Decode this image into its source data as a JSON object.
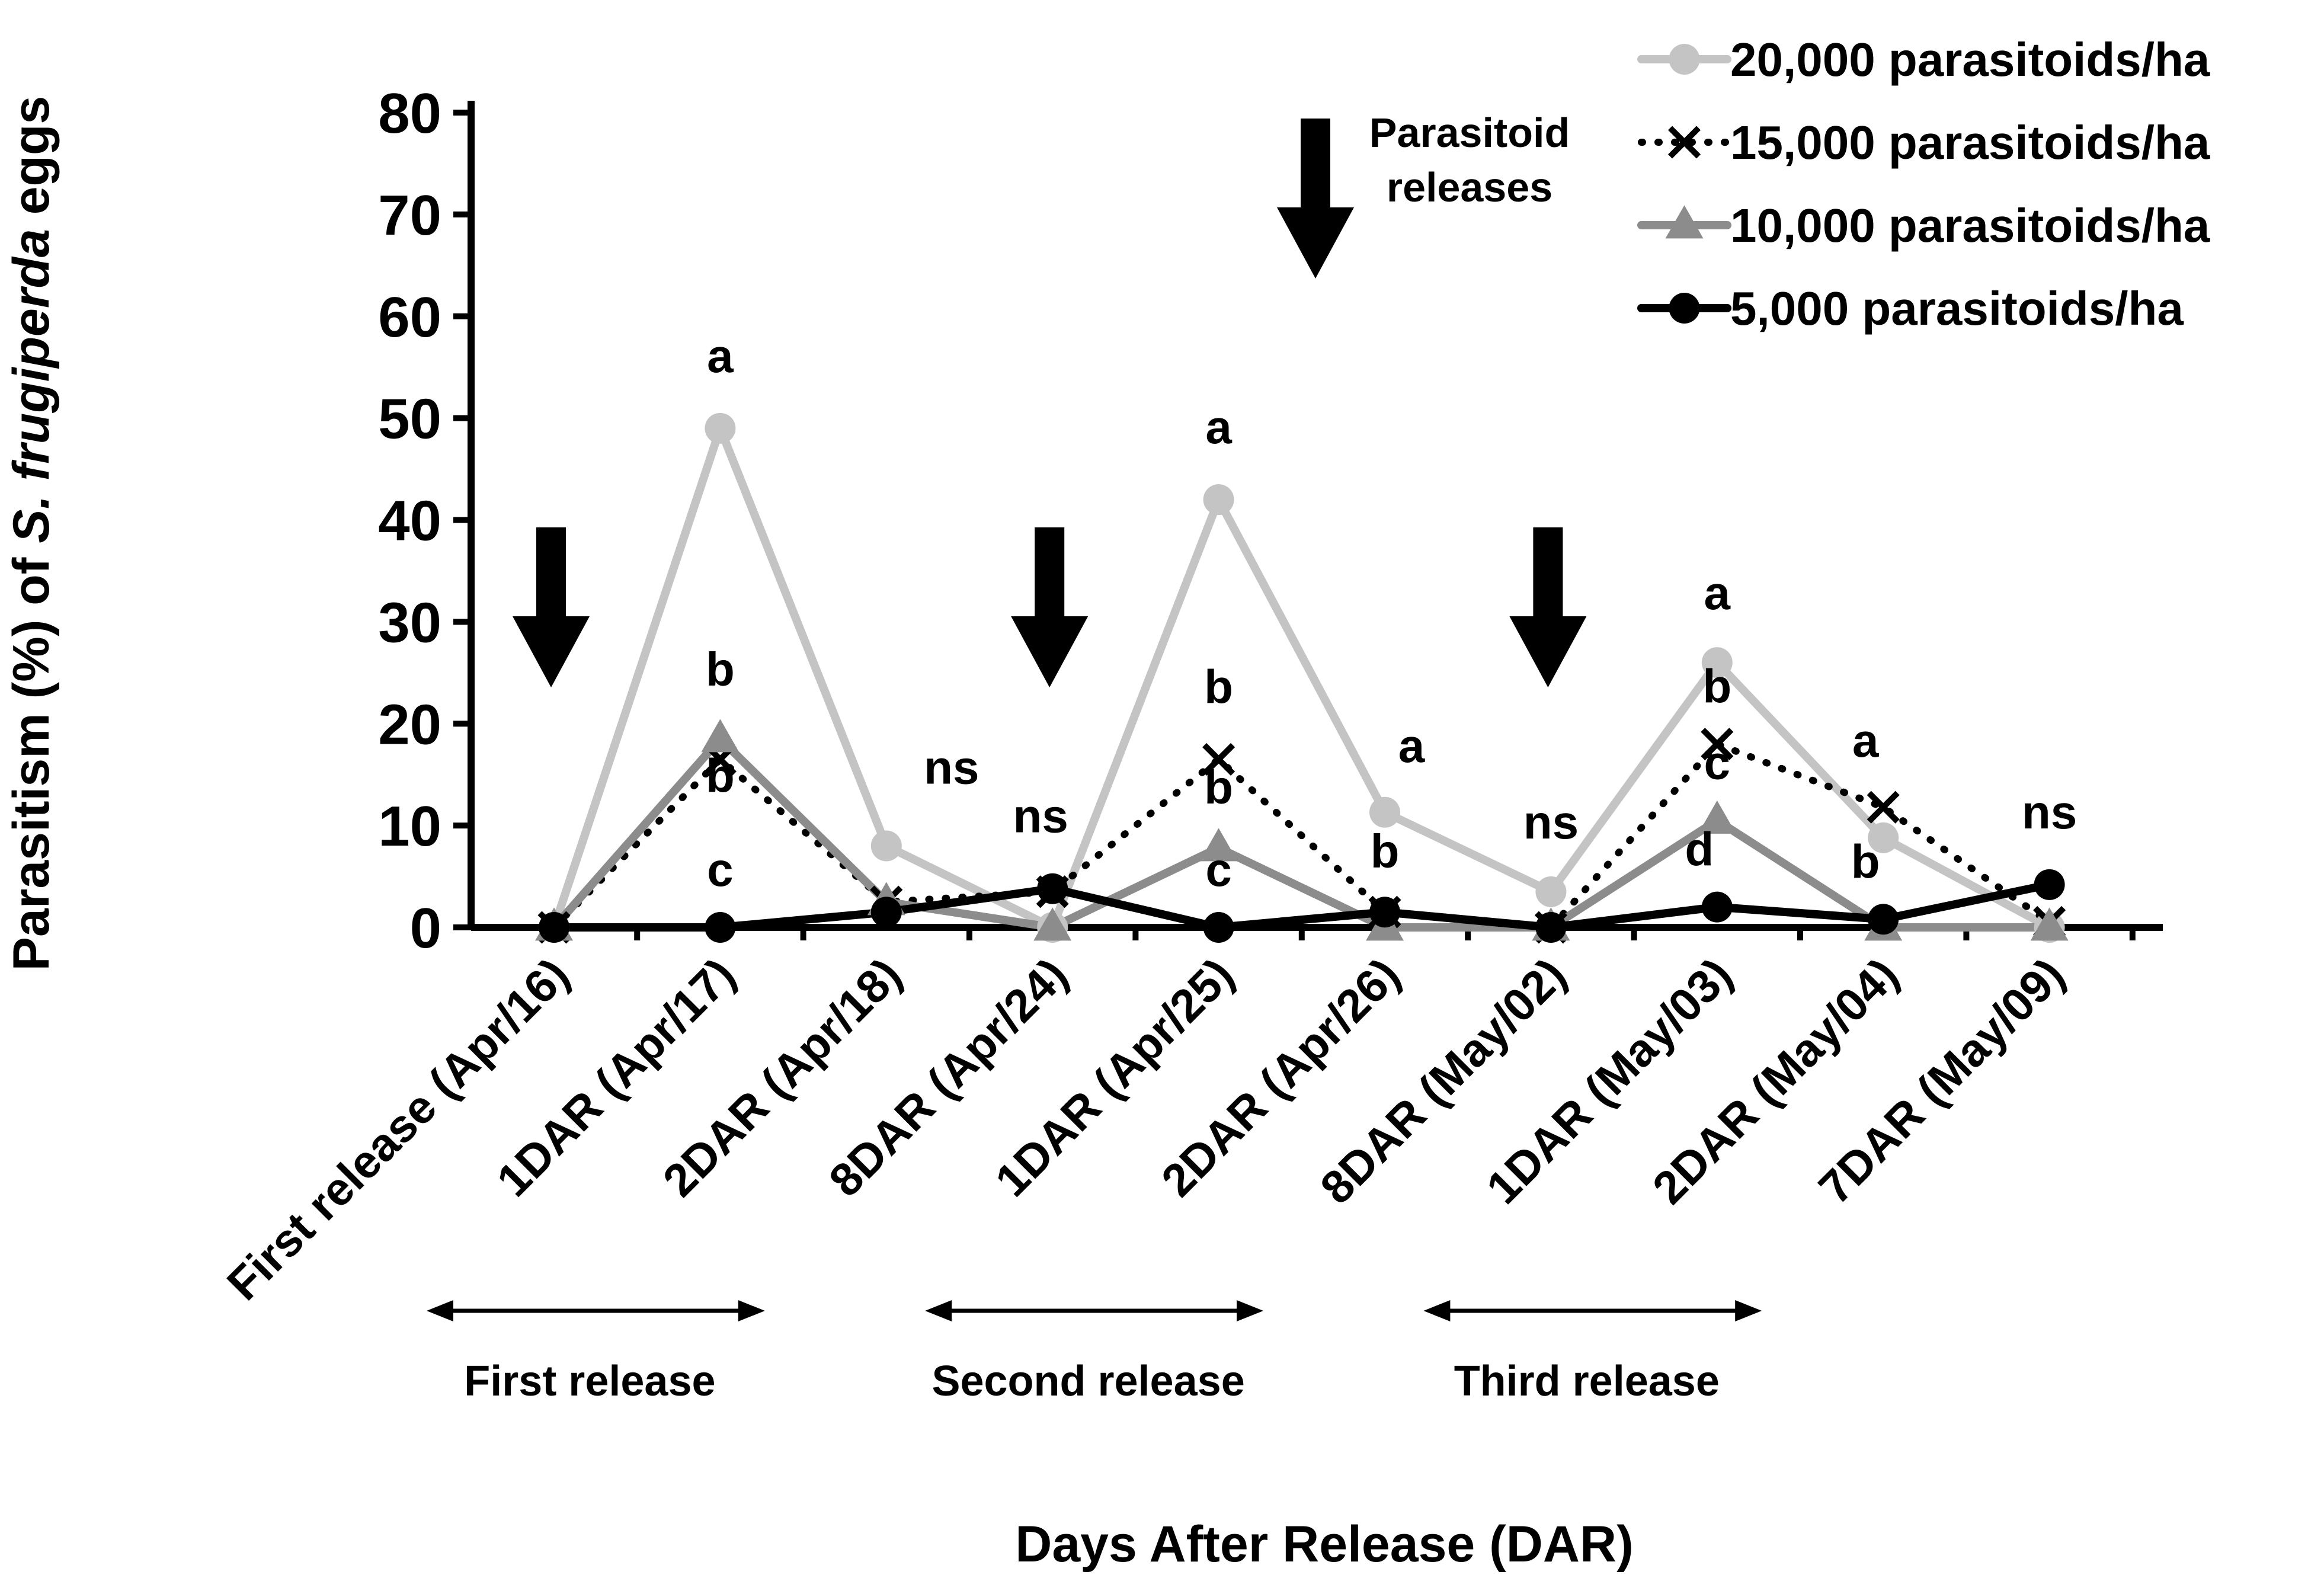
{
  "chart_data": {
    "type": "line",
    "ylabel_parts": [
      "Parasitism (%) of ",
      "S. frugiperda",
      " eggs"
    ],
    "xlabel": "Days After Release (DAR)",
    "ylim": [
      0,
      80
    ],
    "yticks": [
      0,
      10,
      20,
      30,
      40,
      50,
      60,
      70,
      80
    ],
    "categories": [
      "First release (Apr/16)",
      "1DAR (Apr/17)",
      "2DAR (Apr/18)",
      "8DAR (Apr/24)",
      "1DAR (Apr/25)",
      "2DAR (Apr/26)",
      "8DAR (May/02)",
      "1DAR (May/03)",
      "2DAR (May/04)",
      "7DAR (May/09)"
    ],
    "series": [
      {
        "name": "20,000 parasitoids/ha",
        "color": "#c4c4c4",
        "marker": "circle",
        "line": "solid",
        "values": [
          0,
          49,
          8,
          0,
          42,
          11.3,
          3.5,
          26,
          8.8,
          0
        ]
      },
      {
        "name": "15,000 parasitoids/ha",
        "color": "#000000",
        "marker": "x",
        "line": "dotted",
        "values": [
          0,
          16.5,
          2.5,
          3.5,
          16.5,
          1.5,
          0,
          18,
          11.8,
          0.5
        ]
      },
      {
        "name": "10,000 parasitoids/ha",
        "color": "#8c8c8c",
        "marker": "triangle",
        "line": "solid",
        "values": [
          0,
          18.5,
          2.5,
          0,
          7.8,
          0,
          0,
          10.5,
          0,
          0
        ]
      },
      {
        "name": "5,000 parasitoids/ha",
        "color": "#000000",
        "marker": "circle",
        "line": "solid",
        "values": [
          0,
          0,
          1.5,
          3.8,
          0,
          1.5,
          0,
          2,
          0.8,
          4.2
        ]
      }
    ],
    "significance_letters": [
      {
        "category": 1,
        "value": 49,
        "label": "a"
      },
      {
        "category": 1,
        "value": 18.5,
        "label": "b"
      },
      {
        "category": 1,
        "value": 16.5,
        "label": "b"
      },
      {
        "category": 1,
        "value": 0,
        "label": "c"
      },
      {
        "category": 2,
        "value": 8,
        "label": "ns"
      },
      {
        "category": 3,
        "value": 3.8,
        "label": "ns"
      },
      {
        "category": 4,
        "value": 42,
        "label": "a"
      },
      {
        "category": 4,
        "value": 16.5,
        "label": "b"
      },
      {
        "category": 4,
        "value": 7.8,
        "label": "b"
      },
      {
        "category": 4,
        "value": 0,
        "label": "c"
      },
      {
        "category": 5,
        "value": 11.3,
        "label": "a"
      },
      {
        "category": 5,
        "value": 1.5,
        "label": "b"
      },
      {
        "category": 6,
        "value": 3.5,
        "label": "ns"
      },
      {
        "category": 7,
        "value": 26,
        "label": "a"
      },
      {
        "category": 7,
        "value": 18,
        "label": "b"
      },
      {
        "category": 7,
        "value": 10.5,
        "label": "c"
      },
      {
        "category": 7,
        "value": 2,
        "label": "d"
      },
      {
        "category": 8,
        "value": 11.8,
        "label": "a"
      },
      {
        "category": 8,
        "value": 0.8,
        "label": "b"
      },
      {
        "category": 9,
        "value": 4.2,
        "label": "ns"
      }
    ],
    "release_arrows": [
      0,
      3,
      6
    ],
    "release_marker_title": [
      "Parasitoid",
      "releases"
    ],
    "release_phases": [
      {
        "label": "First release",
        "from_category": 0,
        "to_category": 2
      },
      {
        "label": "Second release",
        "from_category": 3,
        "to_category": 5
      },
      {
        "label": "Third release",
        "from_category": 6,
        "to_category": 8
      }
    ],
    "legend_position": "top-right"
  }
}
